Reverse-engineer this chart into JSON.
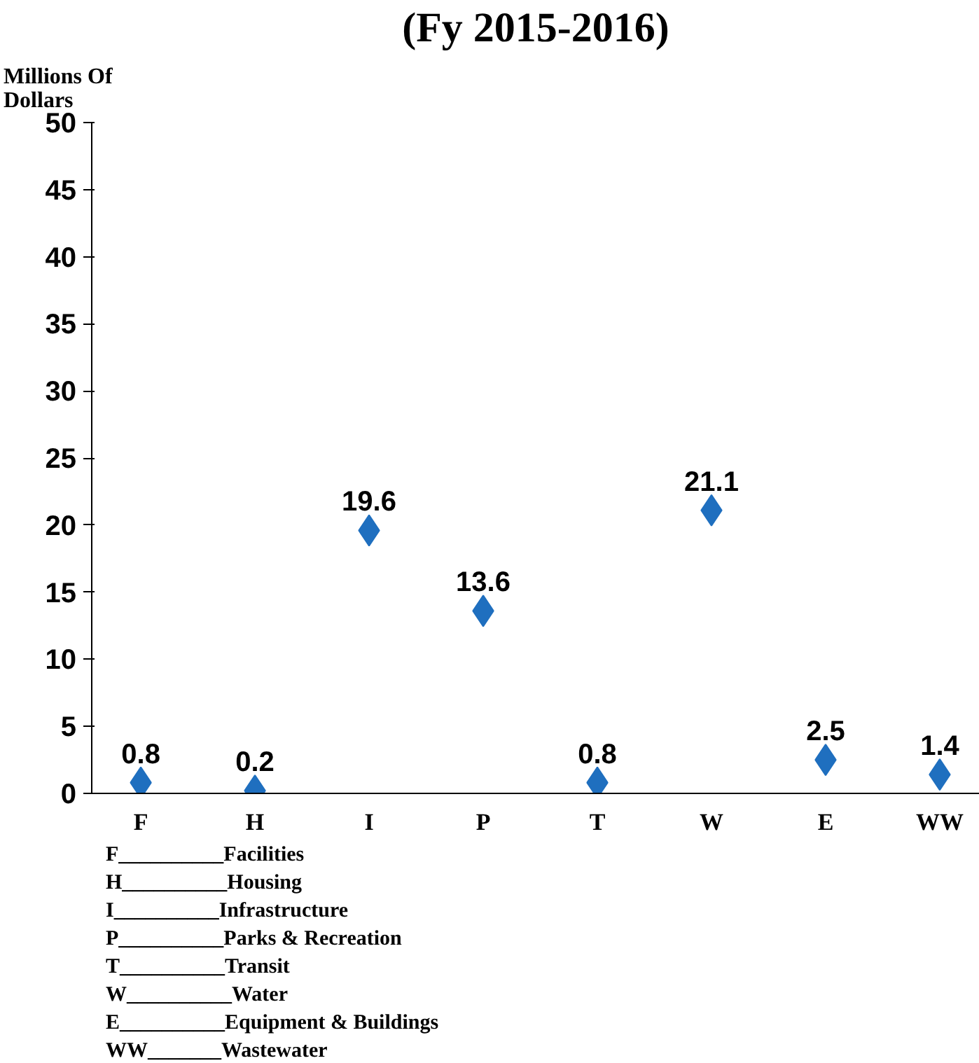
{
  "chart_data": {
    "type": "scatter",
    "title": "(Fy 2015-2016)",
    "ylabel": "Millions Of Dollars",
    "categories": [
      "F",
      "H",
      "I",
      "P",
      "T",
      "W",
      "E",
      "WW"
    ],
    "series": [
      {
        "color": "#1f6fbf",
        "values": [
          0.8,
          0.2,
          19.6,
          13.6,
          0.8,
          21.1,
          2.5,
          1.4
        ]
      }
    ],
    "ylim": [
      0,
      50
    ],
    "yticks": [
      0,
      5,
      10,
      15,
      20,
      25,
      30,
      35,
      40,
      45,
      50
    ],
    "marker": "diamond",
    "data_labels": true,
    "grid": false,
    "annotations": [
      "F__________Facilities",
      "H__________Housing",
      "I__________Infrastructure",
      "P__________Parks & Recreation",
      "T__________Transit",
      "W__________Water",
      "E__________Equipment & Buildings",
      "WW_______Wastewater"
    ]
  }
}
